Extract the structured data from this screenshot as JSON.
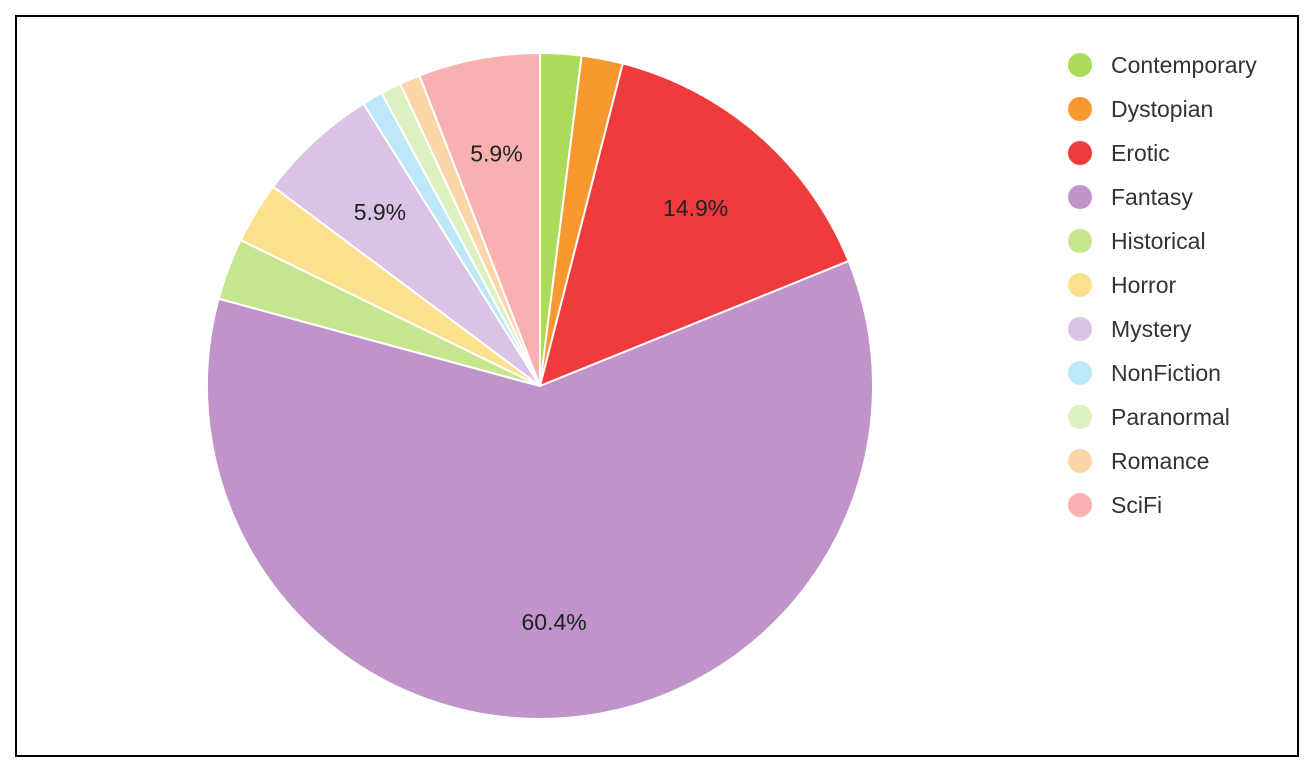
{
  "chart_data": {
    "type": "pie",
    "title": "",
    "start_angle_deg": 0,
    "direction": "clockwise",
    "legend_position": "right",
    "slices": [
      {
        "label": "Contemporary",
        "value": 2.0,
        "color": "#aadc59",
        "data_label": ""
      },
      {
        "label": "Dystopian",
        "value": 2.0,
        "color": "#f7992e",
        "data_label": ""
      },
      {
        "label": "Erotic",
        "value": 14.9,
        "color": "#ef3b3b",
        "data_label": "14.9%"
      },
      {
        "label": "Fantasy",
        "value": 60.4,
        "color": "#c093cb",
        "data_label": "60.4%"
      },
      {
        "label": "Historical",
        "value": 3.0,
        "color": "#c5e68e",
        "data_label": ""
      },
      {
        "label": "Horror",
        "value": 3.0,
        "color": "#fde08c",
        "data_label": ""
      },
      {
        "label": "Mystery",
        "value": 5.9,
        "color": "#dac3e4",
        "data_label": "5.9%"
      },
      {
        "label": "NonFiction",
        "value": 1.0,
        "color": "#bde8f9",
        "data_label": ""
      },
      {
        "label": "Paranormal",
        "value": 1.0,
        "color": "#dcf0c0",
        "data_label": ""
      },
      {
        "label": "Romance",
        "value": 1.0,
        "color": "#fcd6a8",
        "data_label": ""
      },
      {
        "label": "SciFi",
        "value": 5.9,
        "color": "#f9b0b0",
        "data_label": "5.9%"
      }
    ]
  }
}
